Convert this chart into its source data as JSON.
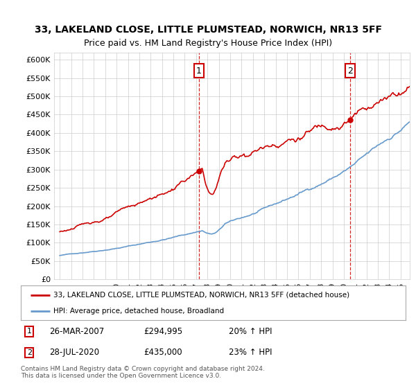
{
  "title": "33, LAKELAND CLOSE, LITTLE PLUMSTEAD, NORWICH, NR13 5FF",
  "subtitle": "Price paid vs. HM Land Registry's House Price Index (HPI)",
  "ylim": [
    0,
    620000
  ],
  "yticks": [
    0,
    50000,
    100000,
    150000,
    200000,
    250000,
    300000,
    350000,
    400000,
    450000,
    500000,
    550000,
    600000
  ],
  "ytick_labels": [
    "£0",
    "£50K",
    "£100K",
    "£150K",
    "£200K",
    "£250K",
    "£300K",
    "£350K",
    "£400K",
    "£450K",
    "£500K",
    "£550K",
    "£600K"
  ],
  "red_color": "#cc0000",
  "blue_color": "#6699cc",
  "marker1_date": 2007.23,
  "marker1_value": 294995,
  "marker2_date": 2020.57,
  "marker2_value": 435000,
  "legend_line1": "33, LAKELAND CLOSE, LITTLE PLUMSTEAD, NORWICH, NR13 5FF (detached house)",
  "legend_line2": "HPI: Average price, detached house, Broadland",
  "footnote": "Contains HM Land Registry data © Crown copyright and database right 2024.\nThis data is licensed under the Open Government Licence v3.0.",
  "background_color": "#ffffff",
  "grid_color": "#cccccc",
  "start_year": 1995,
  "end_year": 2026,
  "xlim_left": 1994.5,
  "xlim_right": 2025.8
}
